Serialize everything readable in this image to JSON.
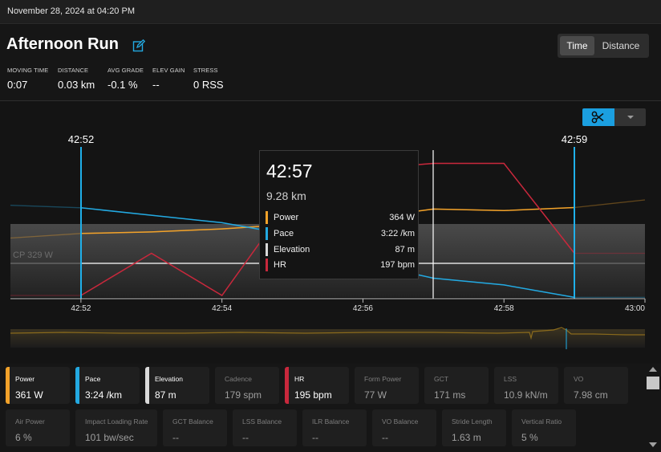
{
  "topbar": {
    "date": "November 28, 2024 at 04:20 PM"
  },
  "activity": {
    "title": "Afternoon Run"
  },
  "view_toggle": {
    "time": "Time",
    "distance": "Distance",
    "selected": "Time"
  },
  "summary": [
    {
      "label": "MOVING TIME",
      "value": "0:07"
    },
    {
      "label": "DISTANCE",
      "value": "0.03 km"
    },
    {
      "label": "AVG GRADE",
      "value": "-0.1 %"
    },
    {
      "label": "ELEV GAIN",
      "value": "--"
    },
    {
      "label": "STRESS",
      "value": "0 RSS"
    }
  ],
  "chart": {
    "cp_label": "CP 329 W",
    "range_start": "42:52",
    "range_end": "42:59",
    "colors": {
      "power": "#f2a22a",
      "pace": "#23a9e1",
      "elevation": "#d9d9d9",
      "hr": "#c8283c",
      "selection": "#1fb0ea"
    }
  },
  "chart_data": {
    "type": "line",
    "x_ticks": [
      "42:52",
      "42:54",
      "42:56",
      "42:58",
      "43:00"
    ],
    "xlim": [
      "42:51",
      "43:00"
    ],
    "series": [
      {
        "name": "Power",
        "x": [
          "42:51",
          "42:52",
          "42:53",
          "42:54",
          "42:55",
          "42:56",
          "42:57",
          "42:58",
          "42:59",
          "43:00"
        ],
        "values": [
          345,
          348,
          349,
          351,
          354,
          358,
          364,
          363,
          365,
          370
        ]
      },
      {
        "name": "Pace",
        "x": [
          "42:51",
          "42:52",
          "42:53",
          "42:54",
          "42:55",
          "42:56",
          "42:57",
          "42:58",
          "42:59",
          "43:00"
        ],
        "values": [
          6.3,
          6.2,
          5.9,
          5.6,
          5.1,
          4.0,
          3.37,
          3.1,
          2.6,
          2.6
        ]
      },
      {
        "name": "Elevation",
        "x": [
          "42:51",
          "42:52",
          "42:53",
          "42:54",
          "42:55",
          "42:56",
          "42:57",
          "42:58",
          "42:59",
          "43:00"
        ],
        "values": [
          87,
          87,
          87,
          87,
          87,
          87,
          87,
          87,
          87,
          87
        ]
      },
      {
        "name": "HR",
        "x": [
          "42:51",
          "42:52",
          "42:53",
          "42:54",
          "42:55",
          "42:56",
          "42:57",
          "42:58",
          "42:59",
          "43:00"
        ],
        "values": [
          150,
          150,
          165,
          150,
          185,
          195,
          197,
          197,
          165,
          165
        ]
      }
    ],
    "cp_threshold_w": 329
  },
  "tooltip": {
    "time": "42:57",
    "distance": "9.28 km",
    "rows": [
      {
        "name": "Power",
        "value": "364 W",
        "color": "#f2a22a"
      },
      {
        "name": "Pace",
        "value": "3:22 /km",
        "color": "#23a9e1"
      },
      {
        "name": "Elevation",
        "value": "87 m",
        "color": "#d9d9d9"
      },
      {
        "name": "HR",
        "value": "197 bpm",
        "color": "#c8283c"
      }
    ]
  },
  "metrics_primary": [
    {
      "label": "Power",
      "value": "361 W",
      "color": "#f2a22a"
    },
    {
      "label": "Pace",
      "value": "3:24 /km",
      "color": "#23a9e1"
    },
    {
      "label": "Elevation",
      "value": "87 m",
      "color": "#d9d9d9"
    },
    {
      "label": "Cadence",
      "value": "179 spm",
      "color": ""
    },
    {
      "label": "HR",
      "value": "195 bpm",
      "color": "#c8283c"
    },
    {
      "label": "Form Power",
      "value": "77 W",
      "color": ""
    },
    {
      "label": "GCT",
      "value": "171 ms",
      "color": ""
    },
    {
      "label": "LSS",
      "value": "10.9 kN/m",
      "color": ""
    },
    {
      "label": "VO",
      "value": "7.98 cm",
      "color": ""
    }
  ],
  "metrics_secondary": [
    {
      "label": "Air Power",
      "value": "6 %"
    },
    {
      "label": "Impact Loading Rate",
      "value": "101 bw/sec"
    },
    {
      "label": "GCT Balance",
      "value": "--"
    },
    {
      "label": "LSS Balance",
      "value": "--"
    },
    {
      "label": "ILR Balance",
      "value": "--"
    },
    {
      "label": "VO Balance",
      "value": "--"
    },
    {
      "label": "Stride Length",
      "value": "1.63 m"
    },
    {
      "label": "Vertical Ratio",
      "value": "5 %"
    }
  ]
}
